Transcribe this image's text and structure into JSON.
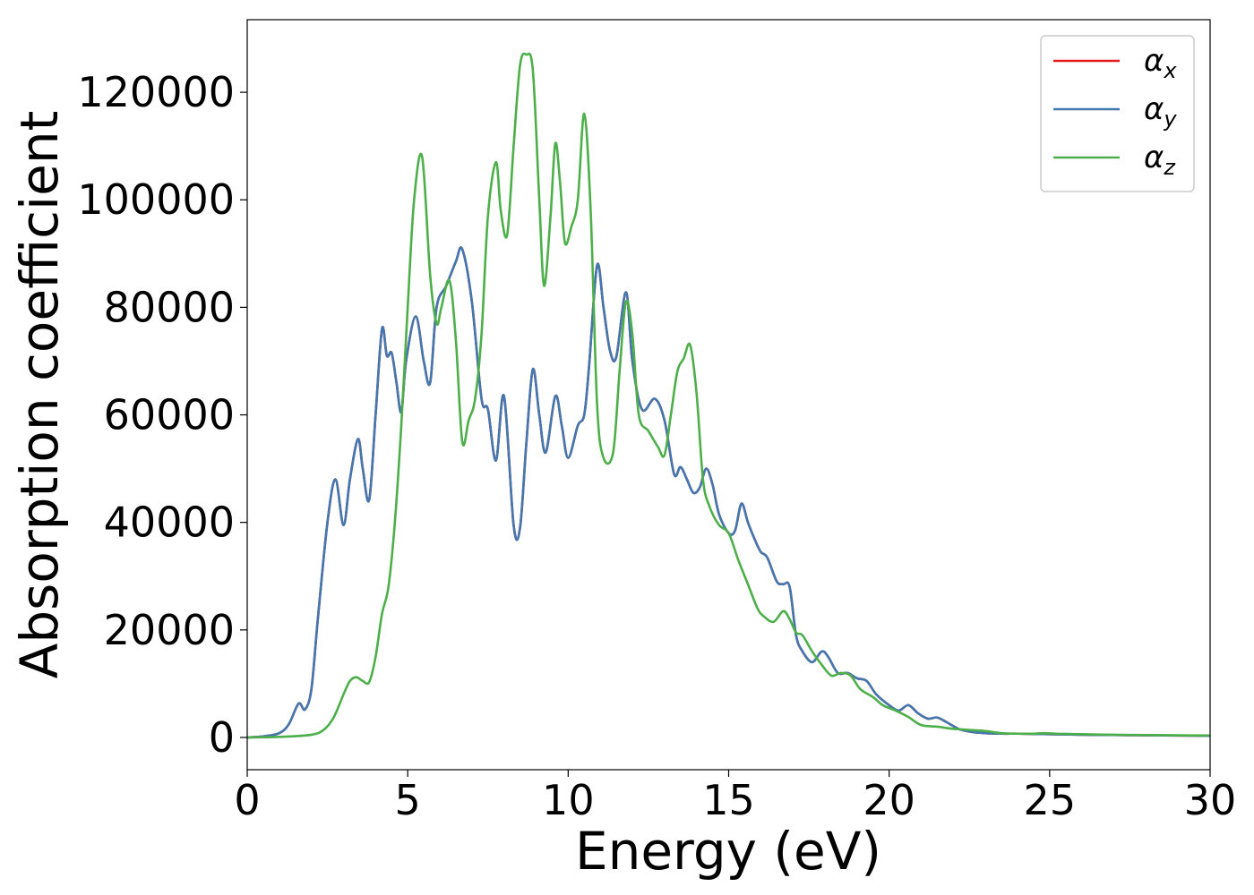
{
  "chart_data": {
    "type": "line",
    "title": "",
    "xlabel": "Energy (eV)",
    "ylabel": "Absorption coefficient",
    "xlim": [
      0,
      30
    ],
    "ylim": [
      -6000,
      133500
    ],
    "xticks": [
      0,
      5,
      10,
      15,
      20,
      25,
      30
    ],
    "yticks": [
      0,
      20000,
      40000,
      60000,
      80000,
      100000,
      120000
    ],
    "grid": false,
    "legend_position": "top-right",
    "series": [
      {
        "name": "α_x",
        "symbol": "α",
        "subscript": "x",
        "color": "#e41a1c",
        "x": [
          0,
          0.5,
          1.0,
          1.3,
          1.6,
          1.8,
          2.0,
          2.2,
          2.5,
          2.75,
          3.0,
          3.2,
          3.45,
          3.6,
          3.8,
          4.0,
          4.2,
          4.35,
          4.5,
          4.65,
          4.8,
          4.95,
          5.25,
          5.5,
          5.7,
          5.9,
          6.2,
          6.5,
          6.7,
          7.0,
          7.3,
          7.5,
          7.75,
          8.0,
          8.3,
          8.5,
          8.7,
          8.9,
          9.1,
          9.3,
          9.6,
          9.8,
          10.0,
          10.3,
          10.5,
          10.65,
          10.9,
          11.1,
          11.3,
          11.5,
          11.8,
          12.0,
          12.3,
          12.7,
          13.0,
          13.3,
          13.5,
          13.7,
          13.9,
          14.1,
          14.3,
          14.5,
          14.7,
          15.0,
          15.2,
          15.4,
          15.6,
          15.8,
          16.0,
          16.2,
          16.5,
          16.7,
          16.9,
          17.1,
          17.3,
          17.6,
          17.9,
          18.1,
          18.4,
          18.7,
          19.0,
          19.3,
          19.6,
          20.0,
          20.3,
          20.6,
          20.9,
          21.2,
          21.5,
          21.8,
          22.2,
          22.6,
          23.0,
          23.5,
          24.0,
          24.5,
          25.0,
          25.5,
          26.0,
          27.0,
          28.0,
          29.0,
          30.0
        ],
        "values": [
          0,
          200,
          800,
          2500,
          6300,
          5200,
          9000,
          22000,
          40000,
          48000,
          39500,
          48000,
          55500,
          50000,
          44200,
          60000,
          76000,
          71000,
          71500,
          66000,
          60500,
          70000,
          78300,
          70000,
          66000,
          80000,
          84000,
          88500,
          90800,
          81000,
          63000,
          61000,
          51500,
          63500,
          39500,
          39000,
          55000,
          68500,
          60000,
          53000,
          63500,
          58000,
          52000,
          58000,
          60000,
          69000,
          87800,
          80000,
          72000,
          70800,
          82800,
          70000,
          61000,
          63000,
          59000,
          49000,
          50300,
          48000,
          45500,
          46500,
          50000,
          47000,
          41500,
          38000,
          38500,
          43500,
          40000,
          37000,
          34500,
          33500,
          29000,
          28500,
          28000,
          19000,
          16000,
          14000,
          16000,
          15000,
          12000,
          12000,
          11000,
          10500,
          8000,
          6000,
          5000,
          6000,
          4500,
          3500,
          3700,
          2800,
          1500,
          1000,
          800,
          700,
          700,
          650,
          600,
          550,
          500,
          450,
          400,
          350,
          300
        ]
      },
      {
        "name": "α_y",
        "symbol": "α",
        "subscript": "y",
        "color": "#4278b0",
        "x": [
          0,
          0.5,
          1.0,
          1.3,
          1.6,
          1.8,
          2.0,
          2.2,
          2.5,
          2.75,
          3.0,
          3.2,
          3.45,
          3.6,
          3.8,
          4.0,
          4.2,
          4.35,
          4.5,
          4.65,
          4.8,
          4.95,
          5.25,
          5.5,
          5.7,
          5.9,
          6.2,
          6.5,
          6.7,
          7.0,
          7.3,
          7.5,
          7.75,
          8.0,
          8.3,
          8.5,
          8.7,
          8.9,
          9.1,
          9.3,
          9.6,
          9.8,
          10.0,
          10.3,
          10.5,
          10.65,
          10.9,
          11.1,
          11.3,
          11.5,
          11.8,
          12.0,
          12.3,
          12.7,
          13.0,
          13.3,
          13.5,
          13.7,
          13.9,
          14.1,
          14.3,
          14.5,
          14.7,
          15.0,
          15.2,
          15.4,
          15.6,
          15.8,
          16.0,
          16.2,
          16.5,
          16.7,
          16.9,
          17.1,
          17.3,
          17.6,
          17.9,
          18.1,
          18.4,
          18.7,
          19.0,
          19.3,
          19.6,
          20.0,
          20.3,
          20.6,
          20.9,
          21.2,
          21.5,
          21.8,
          22.2,
          22.6,
          23.0,
          23.5,
          24.0,
          24.5,
          25.0,
          25.5,
          26.0,
          27.0,
          28.0,
          29.0,
          30.0
        ],
        "values": [
          0,
          200,
          800,
          2500,
          6300,
          5200,
          9000,
          22000,
          40000,
          48000,
          39500,
          48000,
          55500,
          50000,
          44200,
          60000,
          76000,
          71000,
          71500,
          66000,
          60500,
          70000,
          78300,
          70000,
          66000,
          80000,
          84000,
          88500,
          90800,
          81000,
          63000,
          61000,
          51500,
          63500,
          39500,
          39000,
          55000,
          68500,
          60000,
          53000,
          63500,
          58000,
          52000,
          58000,
          60000,
          69000,
          87800,
          80000,
          72000,
          70800,
          82800,
          70000,
          61000,
          63000,
          59000,
          49000,
          50300,
          48000,
          45500,
          46500,
          50000,
          47000,
          41500,
          38000,
          38500,
          43500,
          40000,
          37000,
          34500,
          33500,
          29000,
          28500,
          28000,
          19000,
          16000,
          14000,
          16000,
          15000,
          12000,
          12000,
          11000,
          10500,
          8000,
          6000,
          5000,
          6000,
          4500,
          3500,
          3700,
          2800,
          1500,
          1000,
          800,
          700,
          700,
          650,
          600,
          550,
          500,
          450,
          400,
          350,
          300
        ]
      },
      {
        "name": "α_z",
        "symbol": "α",
        "subscript": "z",
        "color": "#4daf4a",
        "x": [
          0,
          1.0,
          2.0,
          2.4,
          2.7,
          3.0,
          3.2,
          3.4,
          3.6,
          3.8,
          4.0,
          4.2,
          4.4,
          4.6,
          4.8,
          5.0,
          5.2,
          5.45,
          5.7,
          5.9,
          6.05,
          6.3,
          6.5,
          6.7,
          6.9,
          7.1,
          7.3,
          7.5,
          7.75,
          7.9,
          8.1,
          8.3,
          8.5,
          8.7,
          8.9,
          9.1,
          9.25,
          9.45,
          9.6,
          9.75,
          9.9,
          10.1,
          10.3,
          10.5,
          10.7,
          10.9,
          11.1,
          11.4,
          11.6,
          11.8,
          12.0,
          12.2,
          12.5,
          12.8,
          13.0,
          13.2,
          13.4,
          13.6,
          13.8,
          14.0,
          14.2,
          14.4,
          14.7,
          15.0,
          15.3,
          15.6,
          15.9,
          16.1,
          16.4,
          16.7,
          16.9,
          17.1,
          17.3,
          17.6,
          17.9,
          18.2,
          18.5,
          18.8,
          19.1,
          19.5,
          19.8,
          20.2,
          20.6,
          21.0,
          21.5,
          22.0,
          22.5,
          23.0,
          23.5,
          24.0,
          24.5,
          24.8,
          25.2,
          25.6,
          26.0,
          27.0,
          28.0,
          29.0,
          30.0
        ],
        "values": [
          0,
          100,
          500,
          1500,
          3800,
          8000,
          10500,
          11200,
          10500,
          10300,
          15000,
          23000,
          28000,
          40000,
          58000,
          80000,
          100000,
          108000,
          86000,
          77000,
          80000,
          85000,
          74000,
          55000,
          59000,
          63000,
          75000,
          97000,
          107000,
          98000,
          93500,
          110000,
          125000,
          127000,
          124000,
          100000,
          84000,
          97000,
          110500,
          103000,
          92000,
          95000,
          100000,
          116000,
          98000,
          62000,
          52000,
          53000,
          68000,
          81000,
          75000,
          60000,
          57000,
          54000,
          52500,
          60000,
          68000,
          70500,
          73000,
          64000,
          48000,
          43000,
          39500,
          38000,
          33000,
          28500,
          24000,
          22500,
          21500,
          23500,
          22000,
          19500,
          19000,
          16000,
          13500,
          11500,
          12000,
          11500,
          9000,
          7500,
          6000,
          5000,
          3800,
          2300,
          2000,
          1600,
          1400,
          1200,
          800,
          700,
          700,
          800,
          700,
          650,
          600,
          500,
          450,
          400,
          350
        ]
      }
    ]
  }
}
